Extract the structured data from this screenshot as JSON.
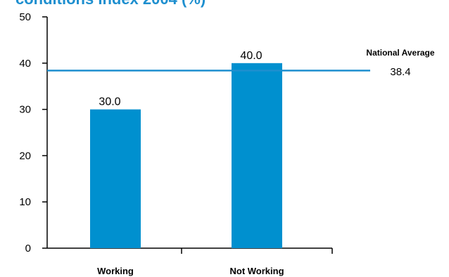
{
  "chart_data": {
    "type": "bar",
    "title": "",
    "title_fragment": "conditions Index 2004 (%)",
    "categories": [
      "Working",
      "Not Working"
    ],
    "values": [
      30.0,
      40.0
    ],
    "data_labels": [
      "30.0",
      "40.0"
    ],
    "ylim": [
      0,
      50
    ],
    "yticks": [
      0,
      10,
      20,
      30,
      40,
      50
    ],
    "reference_line": {
      "label": "National Average",
      "value": 38.4,
      "value_label": "38.4"
    },
    "grid": false,
    "legend": "none",
    "colors": {
      "bar": "#0090cf",
      "reference_line": "#1e8fcf",
      "axis": "#000000",
      "title": "#1e8fcf"
    }
  }
}
